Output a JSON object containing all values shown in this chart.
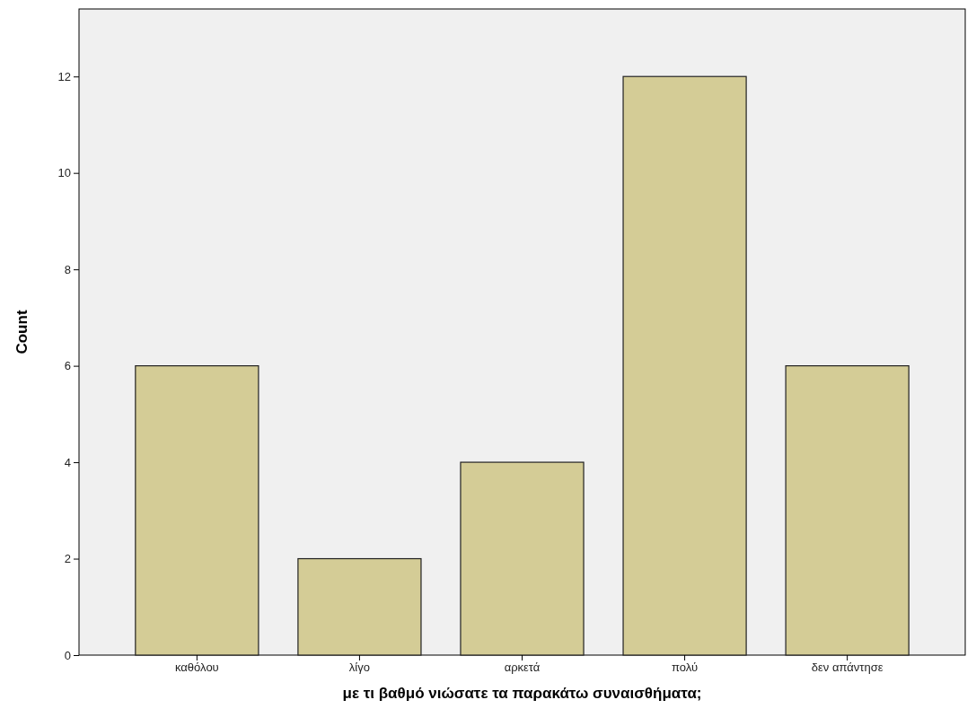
{
  "chart_data": {
    "type": "bar",
    "xlabel": "με τι βαθμό νιώσατε τα παρακάτω συναισθήματα;",
    "ylabel": "Count",
    "categories": [
      "καθόλου",
      "λίγο",
      "αρκετά",
      "πολύ",
      "δεν απάντησε"
    ],
    "values": [
      6,
      2,
      4,
      12,
      6
    ],
    "color": "#d4cc96",
    "ylim": [
      0,
      13.4
    ],
    "yticks": [
      0,
      2,
      4,
      6,
      8,
      10,
      12
    ],
    "grid": false
  }
}
